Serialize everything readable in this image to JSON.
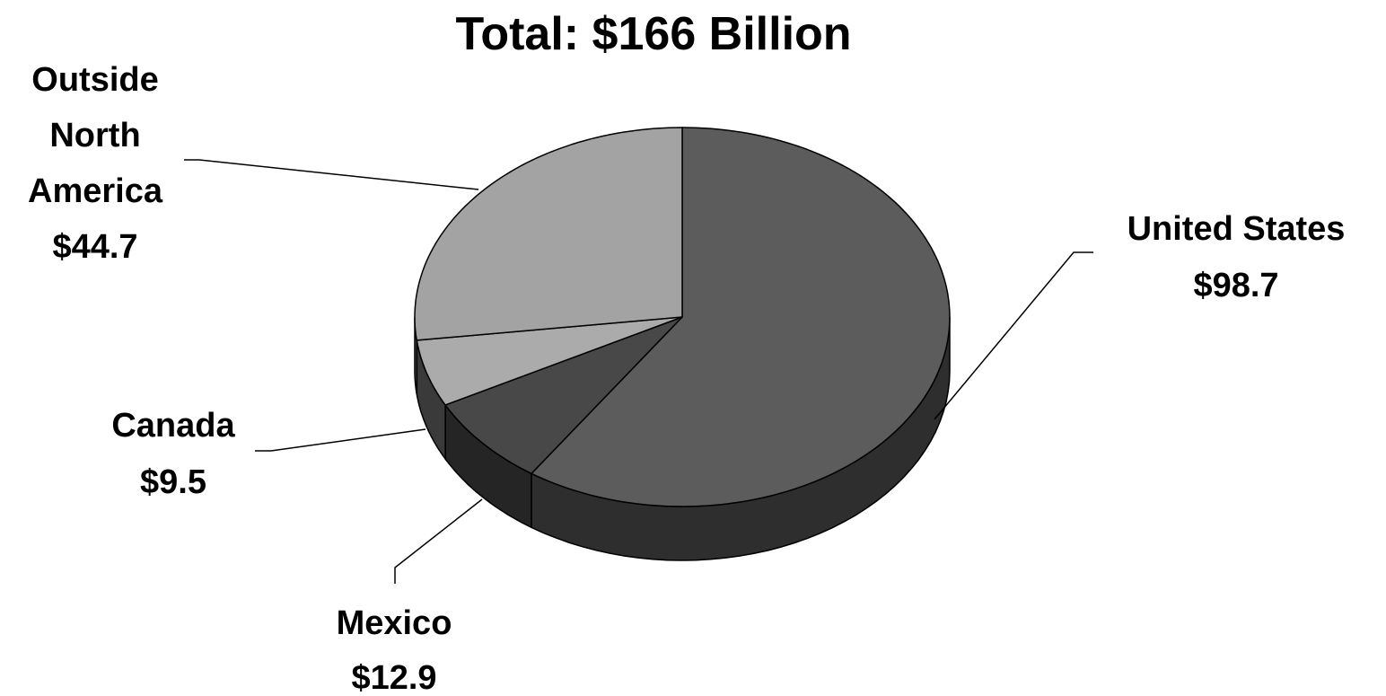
{
  "chart_data": {
    "type": "pie",
    "title": "Total: $166 Billion",
    "style": "3d",
    "slices": [
      {
        "name": "United States",
        "value": 98.7,
        "value_label": "$98.7",
        "color": "#5c5c5c",
        "side_color": "#2e2e2e"
      },
      {
        "name": "Mexico",
        "value": 12.9,
        "value_label": "$12.9",
        "color": "#484848",
        "side_color": "#252525"
      },
      {
        "name": "Canada",
        "value": 9.5,
        "value_label": "$9.5",
        "color": "#ababab",
        "side_color": "#3a3a3a"
      },
      {
        "name": "Outside North America",
        "name_lines": [
          "Outside",
          "North",
          "America"
        ],
        "value": 44.7,
        "value_label": "$44.7",
        "color": "#a3a3a3",
        "side_color": "#555555"
      }
    ]
  }
}
